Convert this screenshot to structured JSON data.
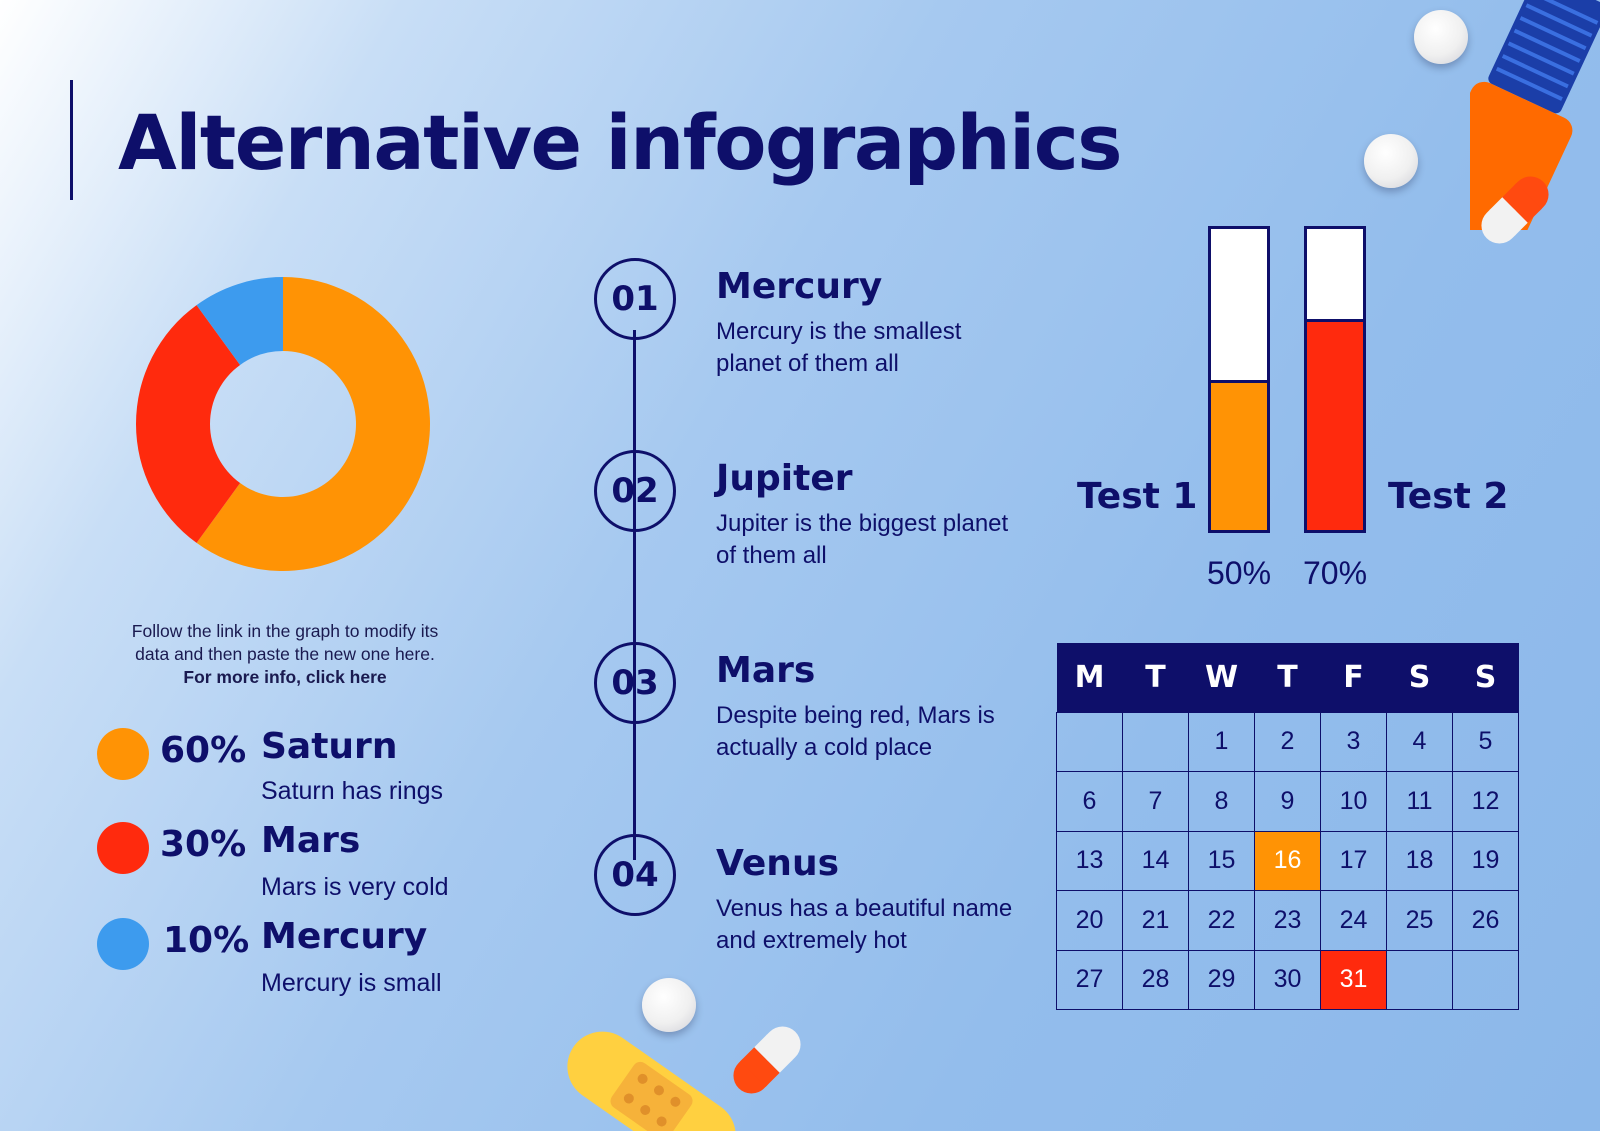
{
  "title": "Alternative infographics",
  "note": {
    "line1": "Follow the link in the graph to modify its",
    "line2": "data and then paste the new one here.",
    "link": "For more info, click here"
  },
  "colors": {
    "navy": "#0e0f6a",
    "orange": "#ff9305",
    "red": "#ff2a0d",
    "blue": "#3d9bee",
    "white": "#ffffff"
  },
  "chart_data": [
    {
      "type": "pie",
      "categories": [
        "Saturn",
        "Mars",
        "Mercury"
      ],
      "values": [
        60,
        30,
        10
      ],
      "colors": [
        "#ff9305",
        "#ff2a0d",
        "#3d9bee"
      ]
    },
    {
      "type": "bar",
      "categories": [
        "Test 1",
        "Test 2"
      ],
      "values": [
        50,
        70
      ],
      "ylim": [
        0,
        100
      ],
      "colors": [
        "#ff9305",
        "#ff2a0d"
      ]
    }
  ],
  "legend": [
    {
      "pct": "60%",
      "name": "Saturn",
      "desc": "Saturn has rings",
      "color": "#ff9305"
    },
    {
      "pct": "30%",
      "name": "Mars",
      "desc": "Mars is very cold",
      "color": "#ff2a0d"
    },
    {
      "pct": "10%",
      "name": "Mercury",
      "desc": "Mercury is small",
      "color": "#3d9bee"
    }
  ],
  "timeline": [
    {
      "num": "01",
      "title": "Mercury",
      "desc": "Mercury is the smallest planet of them all"
    },
    {
      "num": "02",
      "title": "Jupiter",
      "desc": "Jupiter is the biggest planet of them all"
    },
    {
      "num": "03",
      "title": "Mars",
      "desc": "Despite being red, Mars is actually a cold place"
    },
    {
      "num": "04",
      "title": "Venus",
      "desc": "Venus has a beautiful name and extremely hot"
    }
  ],
  "tests": [
    {
      "label": "Test 1",
      "pct": "50%",
      "value": 50,
      "color": "#ff9305"
    },
    {
      "label": "Test 2",
      "pct": "70%",
      "value": 70,
      "color": "#ff2a0d"
    }
  ],
  "calendar": {
    "days": [
      "M",
      "T",
      "W",
      "T",
      "F",
      "S",
      "S"
    ],
    "weeks": [
      [
        "",
        "",
        "1",
        "2",
        "3",
        "4",
        "5"
      ],
      [
        "6",
        "7",
        "8",
        "9",
        "10",
        "11",
        "12"
      ],
      [
        "13",
        "14",
        "15",
        "16",
        "17",
        "18",
        "19"
      ],
      [
        "20",
        "21",
        "22",
        "23",
        "24",
        "25",
        "26"
      ],
      [
        "27",
        "28",
        "29",
        "30",
        "31",
        "",
        ""
      ]
    ],
    "highlights": {
      "16": "#ff9305",
      "31": "#ff2a0d"
    }
  }
}
